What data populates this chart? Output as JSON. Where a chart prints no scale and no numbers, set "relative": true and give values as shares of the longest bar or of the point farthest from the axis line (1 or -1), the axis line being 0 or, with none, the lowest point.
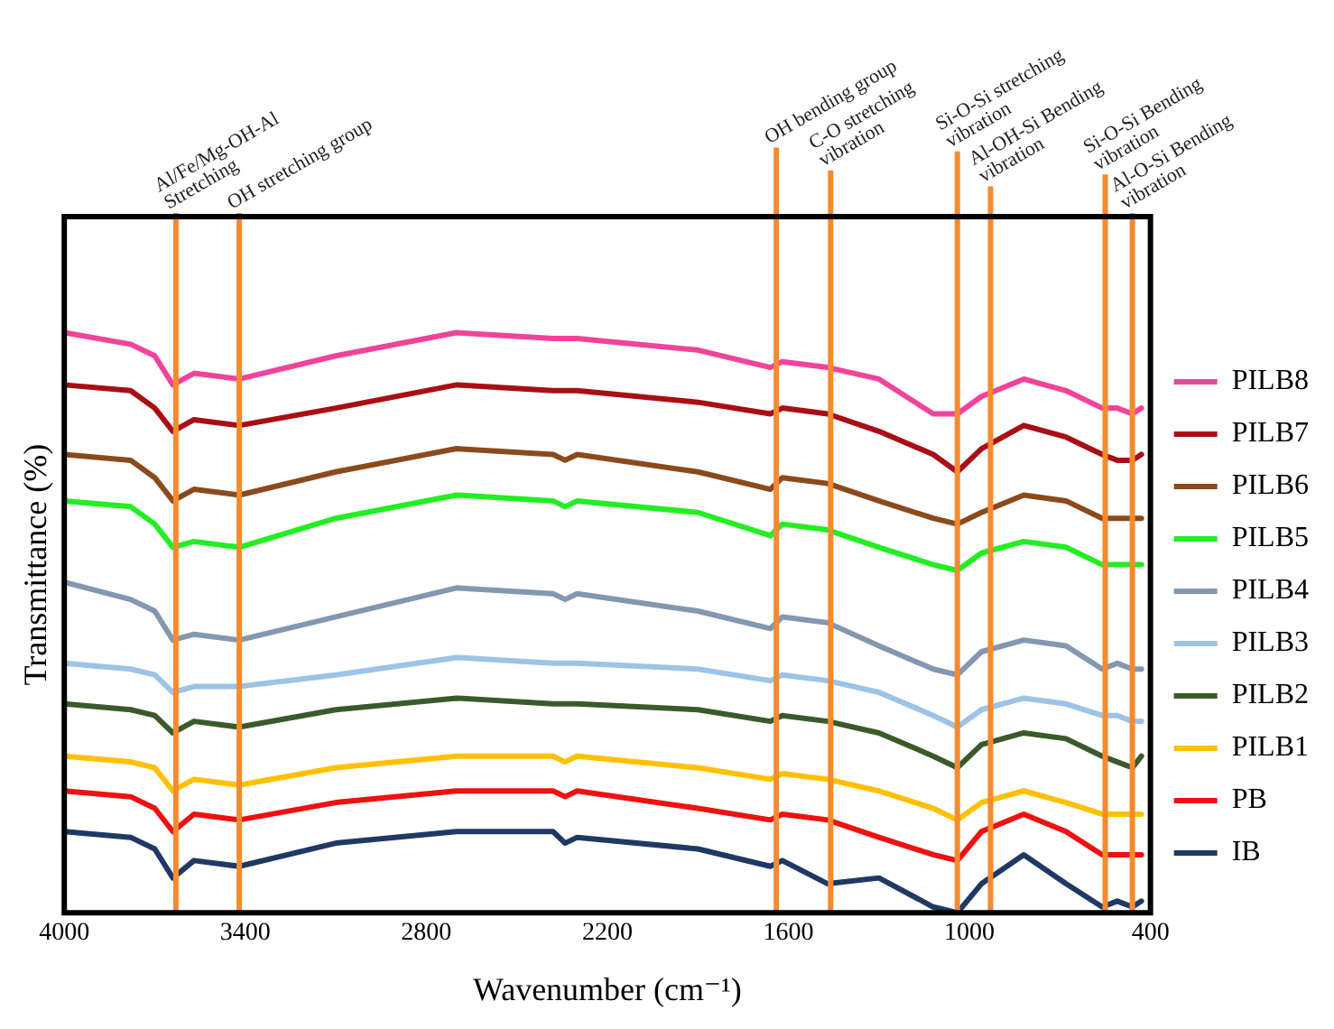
{
  "chart_data": {
    "type": "line",
    "relative": true,
    "xlabel": "Wavenumber (cm⁻¹)",
    "ylabel": "Transmittance (%)",
    "x": [
      4000,
      3780,
      3700,
      3640,
      3570,
      3420,
      3100,
      2700,
      2380,
      2340,
      2300,
      1900,
      1660,
      1620,
      1470,
      1300,
      1120,
      1040,
      960,
      820,
      680,
      560,
      510,
      460,
      430
    ],
    "xlim": [
      4000,
      400
    ],
    "xticks": [
      4000,
      3400,
      2800,
      2200,
      1600,
      1000,
      400
    ],
    "legend": "right",
    "marker": "none",
    "series": [
      {
        "name": "PILB8",
        "color": "#f0449a",
        "values": [
          1.0,
          0.98,
          0.96,
          0.91,
          0.93,
          0.92,
          0.96,
          1.0,
          0.99,
          0.99,
          0.99,
          0.97,
          0.94,
          0.95,
          0.94,
          0.92,
          0.86,
          0.86,
          0.89,
          0.92,
          0.9,
          0.87,
          0.87,
          0.86,
          0.87
        ]
      },
      {
        "name": "PILB7",
        "color": "#a80f14",
        "values": [
          0.91,
          0.9,
          0.87,
          0.83,
          0.85,
          0.84,
          0.87,
          0.91,
          0.9,
          0.9,
          0.9,
          0.88,
          0.86,
          0.87,
          0.86,
          0.83,
          0.79,
          0.76,
          0.8,
          0.84,
          0.82,
          0.79,
          0.78,
          0.78,
          0.79
        ]
      },
      {
        "name": "PILB6",
        "color": "#8b4a1c",
        "values": [
          0.79,
          0.78,
          0.75,
          0.71,
          0.73,
          0.72,
          0.76,
          0.8,
          0.79,
          0.78,
          0.79,
          0.76,
          0.73,
          0.75,
          0.74,
          0.71,
          0.68,
          0.67,
          0.69,
          0.72,
          0.71,
          0.68,
          0.68,
          0.68,
          0.68
        ]
      },
      {
        "name": "PILB5",
        "color": "#22ee22",
        "values": [
          0.71,
          0.7,
          0.67,
          0.63,
          0.64,
          0.63,
          0.68,
          0.72,
          0.71,
          0.7,
          0.71,
          0.69,
          0.65,
          0.67,
          0.66,
          0.63,
          0.6,
          0.59,
          0.62,
          0.64,
          0.63,
          0.6,
          0.6,
          0.6,
          0.6
        ]
      },
      {
        "name": "PILB4",
        "color": "#8497b0",
        "values": [
          0.57,
          0.54,
          0.52,
          0.47,
          0.48,
          0.47,
          0.51,
          0.56,
          0.55,
          0.54,
          0.55,
          0.52,
          0.49,
          0.51,
          0.5,
          0.46,
          0.42,
          0.41,
          0.45,
          0.47,
          0.46,
          0.42,
          0.43,
          0.42,
          0.42
        ]
      },
      {
        "name": "PILB3",
        "color": "#9dc3e6",
        "values": [
          0.43,
          0.42,
          0.41,
          0.38,
          0.39,
          0.39,
          0.41,
          0.44,
          0.43,
          0.43,
          0.43,
          0.42,
          0.4,
          0.41,
          0.4,
          0.38,
          0.34,
          0.32,
          0.35,
          0.37,
          0.36,
          0.34,
          0.34,
          0.33,
          0.33
        ]
      },
      {
        "name": "PILB2",
        "color": "#3b5a2a",
        "values": [
          0.36,
          0.35,
          0.34,
          0.31,
          0.33,
          0.32,
          0.35,
          0.37,
          0.36,
          0.36,
          0.36,
          0.35,
          0.33,
          0.34,
          0.33,
          0.31,
          0.27,
          0.25,
          0.29,
          0.31,
          0.3,
          0.27,
          0.26,
          0.25,
          0.27
        ]
      },
      {
        "name": "PILB1",
        "color": "#ffc000",
        "values": [
          0.27,
          0.26,
          0.25,
          0.21,
          0.23,
          0.22,
          0.25,
          0.27,
          0.27,
          0.26,
          0.27,
          0.25,
          0.23,
          0.24,
          0.23,
          0.21,
          0.18,
          0.16,
          0.19,
          0.21,
          0.19,
          0.17,
          0.17,
          0.17,
          0.17
        ]
      },
      {
        "name": "PB",
        "color": "#ee1111",
        "values": [
          0.21,
          0.2,
          0.18,
          0.14,
          0.17,
          0.16,
          0.19,
          0.21,
          0.21,
          0.2,
          0.21,
          0.18,
          0.16,
          0.17,
          0.16,
          0.13,
          0.1,
          0.09,
          0.14,
          0.17,
          0.14,
          0.1,
          0.1,
          0.1,
          0.1
        ]
      },
      {
        "name": "IB",
        "color": "#203864",
        "values": [
          0.14,
          0.13,
          0.11,
          0.06,
          0.09,
          0.08,
          0.12,
          0.14,
          0.14,
          0.12,
          0.13,
          0.11,
          0.08,
          0.09,
          0.05,
          0.06,
          0.01,
          0.0,
          0.05,
          0.1,
          0.05,
          0.01,
          0.02,
          0.01,
          0.02
        ]
      }
    ],
    "ref_lines": [
      {
        "axis": "x",
        "value": 3630,
        "label": "Al/Fe/Mg-OH-Al\nStretching",
        "color": "#f58a2e"
      },
      {
        "axis": "x",
        "value": 3420,
        "label": "OH stretching group",
        "color": "#f58a2e"
      },
      {
        "axis": "x",
        "value": 1640,
        "label": "OH bending group",
        "color": "#f58a2e"
      },
      {
        "axis": "x",
        "value": 1460,
        "label": "C-O stretching\nvibration",
        "color": "#f58a2e"
      },
      {
        "axis": "x",
        "value": 1040,
        "label": "Si-O-Si stretching\nvibration",
        "color": "#f58a2e"
      },
      {
        "axis": "x",
        "value": 930,
        "label": "Al-OH-Si Bending\nvibration",
        "color": "#f58a2e"
      },
      {
        "axis": "x",
        "value": 550,
        "label": "Si-O-Si Bending\nvibration",
        "color": "#f58a2e"
      },
      {
        "axis": "x",
        "value": 460,
        "label": "Al-O-Si Bending\nvibration",
        "color": "#f58a2e"
      }
    ]
  }
}
